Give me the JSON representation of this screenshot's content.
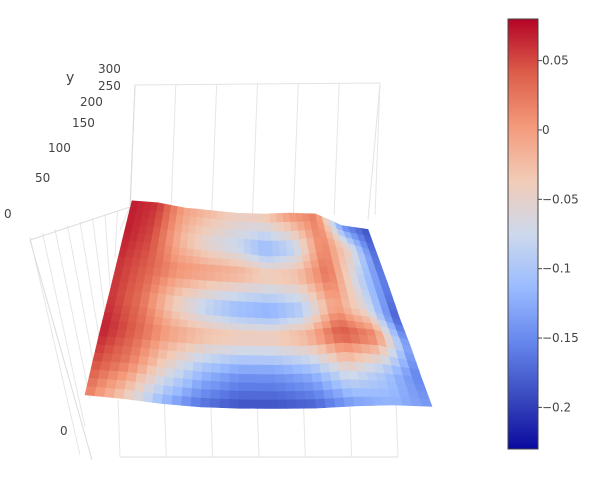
{
  "chart_data": {
    "type": "surface",
    "title": "",
    "axes": {
      "y": {
        "label": "y",
        "ticks": [
          "0",
          "50",
          "100",
          "150",
          "200",
          "250",
          "300"
        ]
      },
      "x": {
        "label": "",
        "ticks": [
          "0"
        ]
      },
      "z": {
        "label": "",
        "ticks": []
      }
    },
    "colorscale": {
      "name": "coolwarm",
      "stops": [
        "#b40426",
        "#dc5d4a",
        "#f49a7b",
        "#f2cbb7",
        "#cdd9ec",
        "#9abbff",
        "#6687ed",
        "#3b4cc0",
        "#0a0a9e"
      ],
      "range": [
        -0.23,
        0.08
      ]
    },
    "colorbar": {
      "ticks": [
        {
          "value": 0.05,
          "label": "0.05"
        },
        {
          "value": 0,
          "label": "0"
        },
        {
          "value": -0.05,
          "label": "−0.05"
        },
        {
          "value": -0.1,
          "label": "−0.1"
        },
        {
          "value": -0.15,
          "label": "−0.15"
        },
        {
          "value": -0.2,
          "label": "−0.2"
        }
      ]
    },
    "surface": {
      "rows": [
        [
          0.07,
          0.06,
          0.0,
          -0.02,
          -0.04,
          -0.03,
          0.01,
          0.02,
          -0.15,
          -0.19
        ],
        [
          0.07,
          0.05,
          -0.02,
          -0.06,
          -0.08,
          -0.12,
          -0.09,
          0.02,
          -0.05,
          -0.18
        ],
        [
          0.06,
          0.04,
          0.01,
          0.0,
          -0.01,
          -0.03,
          -0.02,
          0.03,
          -0.08,
          -0.17
        ],
        [
          0.06,
          0.03,
          -0.04,
          -0.09,
          -0.12,
          -0.13,
          -0.1,
          0.0,
          -0.06,
          -0.19
        ],
        [
          0.07,
          0.04,
          0.0,
          -0.02,
          -0.03,
          -0.03,
          -0.01,
          0.05,
          0.02,
          -0.15
        ],
        [
          0.05,
          0.02,
          -0.05,
          -0.11,
          -0.14,
          -0.14,
          -0.12,
          -0.06,
          -0.1,
          -0.16
        ],
        [
          0.02,
          -0.04,
          -0.12,
          -0.17,
          -0.19,
          -0.19,
          -0.18,
          -0.14,
          -0.12,
          -0.14
        ]
      ]
    }
  }
}
